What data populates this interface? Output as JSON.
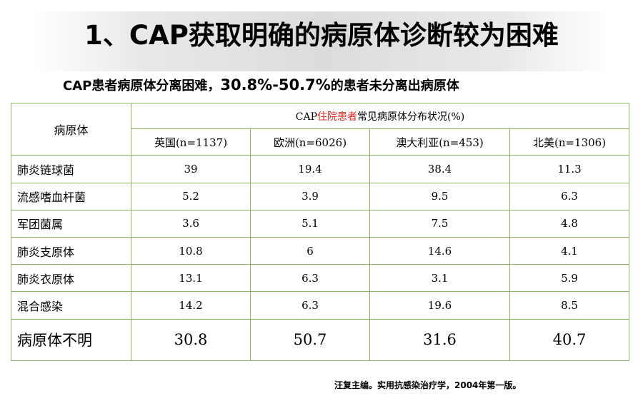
{
  "title": "1、CAP获取明确的病原体诊断较为困难",
  "subtitle": {
    "prefix": "CAP患者病原体分离困难，",
    "range": "30.8%-50.7%",
    "suffix": "的患者未分离出病原体"
  },
  "table": {
    "corner_label": "病原体",
    "group_header": {
      "prefix": "CAP",
      "highlight": "住院患者",
      "suffix": "常见病原体分布状况(%)"
    },
    "highlight_color": "#e8261c",
    "columns": [
      "英国(n=1137)",
      "欧洲(n=6026)",
      "澳大利亚(n=453)",
      "北美(n=1306)"
    ],
    "rows": [
      {
        "label": "肺炎链球菌",
        "values": [
          "39",
          "19.4",
          "38.4",
          "11.3"
        ]
      },
      {
        "label": "流感嗜血杆菌",
        "values": [
          "5.2",
          "3.9",
          "9.5",
          "6.3"
        ]
      },
      {
        "label": "军团菌属",
        "values": [
          "3.6",
          "5.1",
          "7.5",
          "4.8"
        ]
      },
      {
        "label": "肺炎支原体",
        "values": [
          "10.8",
          "6",
          "14.6",
          "4.1"
        ]
      },
      {
        "label": "肺炎衣原体",
        "values": [
          "13.1",
          "6.3",
          "3.1",
          "5.9"
        ]
      },
      {
        "label": "混合感染",
        "values": [
          "14.2",
          "6.3",
          "19.6",
          "8.5"
        ]
      },
      {
        "label": "病原体不明",
        "values": [
          "30.8",
          "50.7",
          "31.6",
          "40.7"
        ]
      }
    ]
  },
  "source": "汪复主编。实用抗感染治疗学，2004年第一版。"
}
